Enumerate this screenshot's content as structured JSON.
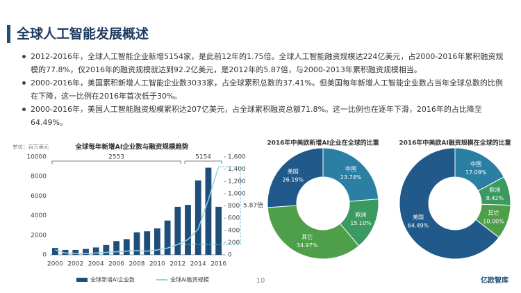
{
  "header": {
    "title": "全球人工智能发展概述"
  },
  "bullets": [
    "2012-2016年，全球人工智能企业新增5154家，是此前12年的1.75倍。全球人工智能融资规模达224亿美元，占2000-2016年累积融资规模的77.8%，仅2016年的融资规模就达到92.2亿美元，是2012年的5.87倍，与2000-2013年累积融资规模相当。",
    "2000-2016年，美国累积新增人工智能企业数3033家，占全球累积总数的37.41%。但美国每年新增人工智能企业数占当年全球总数的比例在下降，这一比例在2016年首次低于30%。",
    "2000-2016年，美国人工智能融资规模累积达207亿美元，占全球累积融资总额71.8%。这一比例也在逐年下滑，2016年的占比降至64.49%。"
  ],
  "page_number": "10",
  "footer": {
    "logo": "亿欧智库"
  },
  "chart_data": [
    {
      "type": "bar",
      "title": "全球每年新增AI企业数与融资规模趋势",
      "unit_label": "单位：百万美元",
      "categories": [
        "2000",
        null,
        "2002",
        null,
        "2004",
        null,
        "2006",
        null,
        "2008",
        null,
        "2010",
        null,
        "2012",
        null,
        "2014",
        null,
        "2016"
      ],
      "series": [
        {
          "name": "全球新增AI企业数",
          "type": "bar",
          "color": "#1f4e79",
          "values": [
            700,
            500,
            500,
            600,
            750,
            1000,
            1400,
            1600,
            2300,
            2400,
            2700,
            3500,
            4900,
            5100,
            7600,
            8900,
            4900
          ]
        },
        {
          "name": "全球AI融资规模",
          "type": "line",
          "axis": "y2",
          "color": "#8fd3e8",
          "values": [
            80,
            30,
            20,
            20,
            30,
            40,
            50,
            60,
            70,
            60,
            80,
            110,
            170,
            250,
            420,
            900,
            1440
          ]
        }
      ],
      "ylim": [
        0,
        10000
      ],
      "yticks": [
        0,
        2000,
        4000,
        6000,
        8000,
        10000
      ],
      "y2lim": [
        0,
        1600
      ],
      "y2ticks": [
        0,
        200,
        400,
        600,
        800,
        {
          "value": 1000,
          "label": "1,000"
        },
        {
          "value": 1200,
          "label": "1,200"
        },
        {
          "value": 1400,
          "label": "1,400"
        },
        {
          "value": 1600,
          "label": "1,600"
        }
      ],
      "annotations": [
        "2553",
        "5154",
        "5.87倍"
      ],
      "grid": false,
      "legend": "bottom"
    },
    {
      "type": "pie",
      "donut": true,
      "title": "2016年中美欧新增AI企业在全球的比重",
      "categories": [
        "中国",
        "欧洲",
        "其它",
        "美国"
      ],
      "values": [
        23.74,
        15.1,
        34.97,
        26.19
      ],
      "value_labels": [
        "23.74%",
        "15.10%",
        "34.97%",
        "26.19%"
      ],
      "colors": [
        "#2b7fa3",
        "#3a9a60",
        "#4f9e4a",
        "#215a8a"
      ]
    },
    {
      "type": "pie",
      "donut": true,
      "title": "2016年中美欧AI融资规模在全球的比重",
      "categories": [
        "中国",
        "欧洲",
        "其它",
        "美国"
      ],
      "values": [
        17.09,
        8.42,
        10.0,
        64.49
      ],
      "value_labels": [
        "17.09%",
        "8.42%",
        "10.00%",
        "64.49%"
      ],
      "colors": [
        "#2b7fa3",
        "#3a9a60",
        "#4f9e4a",
        "#215a8a"
      ]
    }
  ]
}
